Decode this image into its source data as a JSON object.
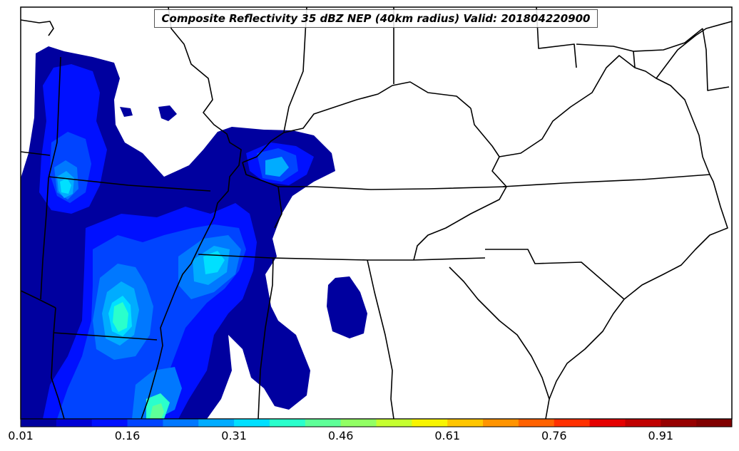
{
  "title": "Composite Reflectivity 35 dBZ NEP (40km radius) Valid: 201804220900",
  "colorbar": {
    "colors": [
      "#00009f",
      "#0000d6",
      "#0010ff",
      "#0044ff",
      "#0078ff",
      "#00acff",
      "#00e0ff",
      "#2affcc",
      "#5eff98",
      "#92ff64",
      "#c6ff30",
      "#f8f500",
      "#ffc600",
      "#ff9400",
      "#ff6200",
      "#ff3000",
      "#e50000",
      "#c00000",
      "#960000",
      "#800000"
    ],
    "ticks": [
      "0.01",
      "0.16",
      "0.31",
      "0.46",
      "0.61",
      "0.76",
      "0.91"
    ]
  },
  "map": {
    "region": "Southeastern United States",
    "feature_colors": {
      "low": "#00009f",
      "mid": "#0044ff",
      "high": "#00e0ff",
      "peak": "#5eff98"
    }
  }
}
